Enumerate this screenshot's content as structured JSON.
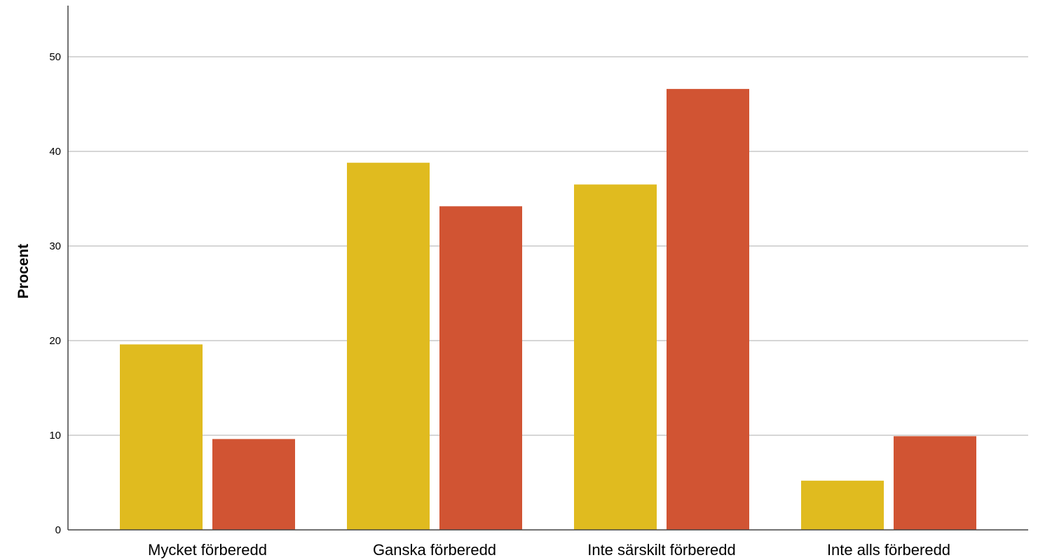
{
  "chart_data": {
    "type": "bar",
    "title": "",
    "xlabel": "",
    "ylabel": "Procent",
    "ylim": [
      0,
      55
    ],
    "yticks": [
      0,
      10,
      20,
      30,
      40,
      50
    ],
    "grid": true,
    "legend": "none",
    "categories": [
      "Mycket förberedd",
      "Ganska förberedd",
      "Inte särskilt förberedd",
      "Inte alls förberedd"
    ],
    "series": [
      {
        "color": "#e0bb1f",
        "values": [
          19.6,
          38.8,
          36.5,
          5.2
        ]
      },
      {
        "color": "#d15433",
        "values": [
          9.6,
          34.2,
          46.6,
          9.9
        ]
      }
    ]
  }
}
